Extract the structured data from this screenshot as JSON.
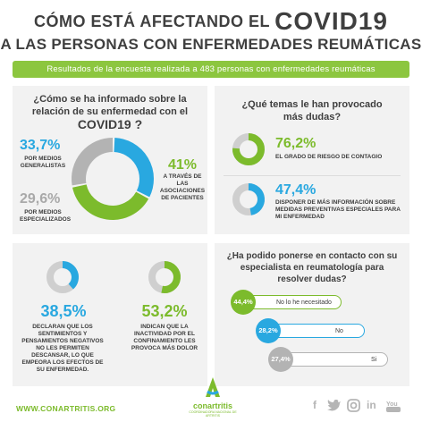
{
  "header": {
    "title_prefix": "Cómo está afectando el",
    "title_covid": "COVID19",
    "title_line2": "A LAS PERSONAS CON ENFERMEDADES REUMÁTICAS"
  },
  "banner": "Resultados de la encuesta realizada a 483 personas con enfermedades reumáticas",
  "q1": {
    "question": "¿Cómo se ha informado sobre la relación de su enfermedad con el",
    "question_covid": "COVID19 ?",
    "items": [
      {
        "pct": "33,7%",
        "label": "POR MEDIOS GENERALISTAS",
        "value": 33.7,
        "color": "#29a8e0"
      },
      {
        "pct": "41%",
        "label": "A TRAVÉS DE LAS ASOCIACIONES DE PACIENTES",
        "value": 41,
        "color": "#7cbb2c"
      },
      {
        "pct": "29,6%",
        "label": "POR MEDIOS ESPECIALIZADOS",
        "value": 29.6,
        "color": "#b3b3b3"
      }
    ]
  },
  "q2": {
    "question": "¿Qué temas le han provocado más dudas?",
    "items": [
      {
        "pct": "76,2%",
        "label": "EL GRADO DE RIESGO DE CONTAGIO",
        "value": 76.2,
        "color": "#7cbb2c"
      },
      {
        "pct": "47,4%",
        "label": "DISPONER DE MÁS INFORMACIÓN SOBRE MEDIDAS PREVENTIVAS ESPECIALES PARA MI ENFERMEDAD",
        "value": 47.4,
        "color": "#29a8e0"
      }
    ]
  },
  "q3": {
    "items": [
      {
        "pct": "38,5%",
        "label": "DECLARAN QUE LOS SENTIMIENTOS Y PENSAMIENTOS NEGATIVOS NO LES PERMITEN DESCANSAR, LO QUE EMPEORA LOS EFECTOS DE SU ENFERMEDAD.",
        "value": 38.5,
        "color": "#29a8e0"
      },
      {
        "pct": "53,2%",
        "label": "INDICAN QUE LA INACTIVIDAD POR EL CONFINAMIENTO LES PROVOCA MÁS DOLOR",
        "value": 53.2,
        "color": "#7cbb2c"
      }
    ]
  },
  "q4": {
    "question": "¿Ha podido ponerse en contacto con su especialista en reumatología para resolver dudas?",
    "items": [
      {
        "pct": "44,4%",
        "label": "No lo he necesitado",
        "value": 44.4,
        "color": "#7cbb2c"
      },
      {
        "pct": "28,2%",
        "label": "No",
        "value": 28.2,
        "color": "#29a8e0"
      },
      {
        "pct": "27,4%",
        "label": "Si",
        "value": 27.4,
        "color": "#b3b3b3"
      }
    ]
  },
  "footer": {
    "url": "WWW.CONARTRITIS.ORG",
    "brand": "conartritis",
    "brand_sub": "COORDINADORA NACIONAL DE ARTRITIS",
    "social": [
      "facebook-icon",
      "twitter-icon",
      "instagram-icon",
      "linkedin-icon",
      "youtube-icon"
    ]
  }
}
